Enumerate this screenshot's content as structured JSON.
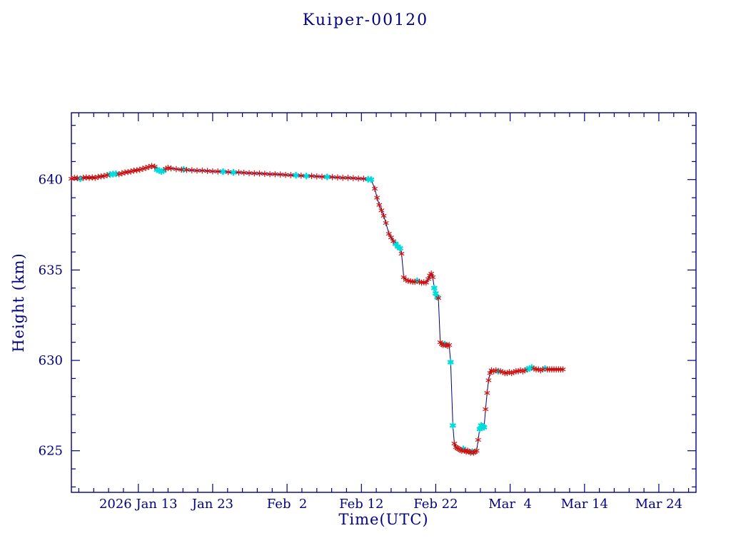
{
  "title": "Kuiper-00120",
  "chart_data": {
    "type": "line",
    "title": "Kuiper-00120",
    "xlabel": "Time(UTC)",
    "ylabel": "Height (km)",
    "x_unit": "days since 2026 Jan 4",
    "xlim": [
      0,
      84
    ],
    "ylim": [
      622.7,
      643.7
    ],
    "grid": false,
    "legend": "none",
    "x_major_ticks": [
      {
        "d": 9,
        "label": "2026 Jan 13"
      },
      {
        "d": 19,
        "label": "Jan 23"
      },
      {
        "d": 29,
        "label": "Feb  2"
      },
      {
        "d": 39,
        "label": "Feb 12"
      },
      {
        "d": 49,
        "label": "Feb 22"
      },
      {
        "d": 59,
        "label": "Mar  4"
      },
      {
        "d": 69,
        "label": "Mar 14"
      },
      {
        "d": 79,
        "label": "Mar 24"
      }
    ],
    "x_minor_step": 2,
    "y_major_ticks": [
      {
        "v": 625,
        "label": "625"
      },
      {
        "v": 630,
        "label": "630"
      },
      {
        "v": 635,
        "label": "635"
      },
      {
        "v": 640,
        "label": "640"
      }
    ],
    "y_minor_step": 1,
    "colors": {
      "axis": "#000080",
      "line": "#000080",
      "red_marker": "#cc1010",
      "cyan_marker": "#00dcdc",
      "background": "#ffffff"
    },
    "marker_note": "points array = [day, height_km, color] with color 0=red asterisk, 1=cyan asterisk",
    "points": [
      [
        0.0,
        640.05,
        0
      ],
      [
        0.4,
        640.1,
        0
      ],
      [
        0.8,
        640.08,
        0
      ],
      [
        1.2,
        640.05,
        1
      ],
      [
        1.6,
        640.1,
        0
      ],
      [
        2.0,
        640.12,
        0
      ],
      [
        2.4,
        640.1,
        0
      ],
      [
        2.8,
        640.12,
        0
      ],
      [
        3.2,
        640.1,
        0
      ],
      [
        3.6,
        640.15,
        0
      ],
      [
        4.0,
        640.18,
        0
      ],
      [
        4.4,
        640.2,
        0
      ],
      [
        4.8,
        640.25,
        0
      ],
      [
        5.2,
        640.28,
        1
      ],
      [
        5.6,
        640.3,
        1
      ],
      [
        6.0,
        640.32,
        1
      ],
      [
        6.4,
        640.3,
        0
      ],
      [
        6.8,
        640.35,
        0
      ],
      [
        7.2,
        640.4,
        0
      ],
      [
        7.6,
        640.42,
        0
      ],
      [
        8.0,
        640.45,
        0
      ],
      [
        8.4,
        640.5,
        0
      ],
      [
        8.8,
        640.52,
        0
      ],
      [
        9.2,
        640.55,
        0
      ],
      [
        9.6,
        640.6,
        0
      ],
      [
        10.0,
        640.65,
        0
      ],
      [
        10.4,
        640.7,
        0
      ],
      [
        10.8,
        640.75,
        0
      ],
      [
        11.2,
        640.72,
        0
      ],
      [
        11.5,
        640.55,
        1
      ],
      [
        11.8,
        640.5,
        1
      ],
      [
        12.1,
        640.45,
        1
      ],
      [
        12.4,
        640.5,
        1
      ],
      [
        12.7,
        640.6,
        0
      ],
      [
        13.0,
        640.65,
        0
      ],
      [
        13.4,
        640.62,
        0
      ],
      [
        14.1,
        640.58,
        0
      ],
      [
        14.8,
        640.55,
        0
      ],
      [
        15.1,
        640.56,
        1
      ],
      [
        15.5,
        640.54,
        0
      ],
      [
        16.2,
        640.52,
        0
      ],
      [
        16.9,
        640.5,
        0
      ],
      [
        17.6,
        640.5,
        0
      ],
      [
        18.3,
        640.48,
        0
      ],
      [
        19.0,
        640.46,
        0
      ],
      [
        19.7,
        640.45,
        0
      ],
      [
        20.4,
        640.44,
        1
      ],
      [
        21.1,
        640.42,
        0
      ],
      [
        21.8,
        640.4,
        1
      ],
      [
        22.5,
        640.4,
        0
      ],
      [
        23.2,
        640.38,
        0
      ],
      [
        23.9,
        640.36,
        0
      ],
      [
        24.6,
        640.35,
        0
      ],
      [
        25.3,
        640.34,
        0
      ],
      [
        26.0,
        640.32,
        0
      ],
      [
        26.7,
        640.3,
        0
      ],
      [
        27.4,
        640.3,
        0
      ],
      [
        28.1,
        640.28,
        0
      ],
      [
        28.8,
        640.26,
        0
      ],
      [
        29.5,
        640.25,
        0
      ],
      [
        30.2,
        640.24,
        1
      ],
      [
        30.9,
        640.22,
        0
      ],
      [
        31.6,
        640.2,
        1
      ],
      [
        32.3,
        640.2,
        0
      ],
      [
        33.0,
        640.18,
        0
      ],
      [
        33.7,
        640.16,
        0
      ],
      [
        34.4,
        640.15,
        1
      ],
      [
        35.1,
        640.14,
        0
      ],
      [
        35.8,
        640.12,
        0
      ],
      [
        36.5,
        640.1,
        0
      ],
      [
        37.2,
        640.1,
        0
      ],
      [
        37.9,
        640.08,
        0
      ],
      [
        38.6,
        640.06,
        0
      ],
      [
        39.3,
        640.05,
        0
      ],
      [
        39.9,
        640.02,
        1
      ],
      [
        40.3,
        640.0,
        1
      ],
      [
        40.8,
        639.5,
        0
      ],
      [
        41.1,
        639.0,
        0
      ],
      [
        41.4,
        638.6,
        0
      ],
      [
        41.7,
        638.3,
        0
      ],
      [
        42.0,
        638.0,
        0
      ],
      [
        42.3,
        637.6,
        0
      ],
      [
        42.7,
        637.0,
        0
      ],
      [
        43.0,
        636.8,
        0
      ],
      [
        43.3,
        636.6,
        0
      ],
      [
        43.6,
        636.45,
        1
      ],
      [
        43.9,
        636.3,
        1
      ],
      [
        44.2,
        636.2,
        1
      ],
      [
        44.4,
        635.9,
        0
      ],
      [
        44.7,
        634.6,
        0
      ],
      [
        45.0,
        634.45,
        0
      ],
      [
        45.3,
        634.4,
        0
      ],
      [
        45.6,
        634.38,
        0
      ],
      [
        45.9,
        634.35,
        0
      ],
      [
        46.2,
        634.35,
        0
      ],
      [
        46.5,
        634.4,
        1
      ],
      [
        46.8,
        634.35,
        0
      ],
      [
        47.1,
        634.3,
        0
      ],
      [
        47.4,
        634.32,
        0
      ],
      [
        47.7,
        634.3,
        0
      ],
      [
        48.0,
        634.5,
        0
      ],
      [
        48.2,
        634.7,
        0
      ],
      [
        48.4,
        634.8,
        0
      ],
      [
        48.6,
        634.6,
        0
      ],
      [
        48.8,
        634.0,
        1
      ],
      [
        49.0,
        633.7,
        1
      ],
      [
        49.2,
        633.5,
        1
      ],
      [
        49.35,
        633.45,
        0
      ],
      [
        49.6,
        631.0,
        0
      ],
      [
        49.8,
        630.9,
        0
      ],
      [
        50.0,
        630.85,
        0
      ],
      [
        50.2,
        630.9,
        1
      ],
      [
        50.4,
        630.85,
        0
      ],
      [
        50.6,
        630.8,
        0
      ],
      [
        50.8,
        630.85,
        0
      ],
      [
        51.0,
        629.9,
        1
      ],
      [
        51.3,
        626.4,
        1
      ],
      [
        51.5,
        625.4,
        0
      ],
      [
        51.7,
        625.2,
        0
      ],
      [
        51.9,
        625.15,
        0
      ],
      [
        52.1,
        625.1,
        0
      ],
      [
        52.3,
        625.05,
        0
      ],
      [
        52.5,
        625.0,
        0
      ],
      [
        52.7,
        625.1,
        1
      ],
      [
        52.9,
        625.0,
        0
      ],
      [
        53.1,
        624.95,
        0
      ],
      [
        53.3,
        625.0,
        0
      ],
      [
        53.5,
        624.95,
        0
      ],
      [
        53.7,
        624.9,
        0
      ],
      [
        53.9,
        624.95,
        1
      ],
      [
        54.1,
        624.9,
        0
      ],
      [
        54.3,
        624.95,
        0
      ],
      [
        54.5,
        625.0,
        0
      ],
      [
        54.7,
        625.6,
        0
      ],
      [
        54.9,
        626.2,
        1
      ],
      [
        55.1,
        626.4,
        1
      ],
      [
        55.3,
        626.35,
        1
      ],
      [
        55.5,
        626.3,
        1
      ],
      [
        55.7,
        627.3,
        0
      ],
      [
        55.9,
        628.2,
        0
      ],
      [
        56.1,
        628.9,
        0
      ],
      [
        56.3,
        629.3,
        0
      ],
      [
        56.5,
        629.45,
        0
      ],
      [
        56.8,
        629.4,
        0
      ],
      [
        57.1,
        629.45,
        0
      ],
      [
        57.4,
        629.4,
        1
      ],
      [
        57.7,
        629.4,
        0
      ],
      [
        58.0,
        629.35,
        0
      ],
      [
        58.3,
        629.3,
        0
      ],
      [
        58.6,
        629.3,
        0
      ],
      [
        58.9,
        629.35,
        0
      ],
      [
        59.2,
        629.3,
        0
      ],
      [
        59.5,
        629.35,
        0
      ],
      [
        59.8,
        629.4,
        0
      ],
      [
        60.1,
        629.4,
        0
      ],
      [
        60.4,
        629.45,
        0
      ],
      [
        60.7,
        629.4,
        0
      ],
      [
        61.0,
        629.45,
        0
      ],
      [
        61.3,
        629.5,
        1
      ],
      [
        61.6,
        629.55,
        1
      ],
      [
        61.9,
        629.6,
        1
      ],
      [
        62.2,
        629.55,
        0
      ],
      [
        62.5,
        629.5,
        0
      ],
      [
        62.8,
        629.5,
        0
      ],
      [
        63.1,
        629.45,
        0
      ],
      [
        63.4,
        629.5,
        0
      ],
      [
        63.7,
        629.55,
        1
      ],
      [
        64.0,
        629.5,
        0
      ],
      [
        64.3,
        629.5,
        0
      ],
      [
        64.6,
        629.5,
        0
      ],
      [
        64.9,
        629.5,
        0
      ],
      [
        65.2,
        629.5,
        0
      ],
      [
        65.5,
        629.5,
        0
      ],
      [
        65.8,
        629.5,
        0
      ],
      [
        66.1,
        629.5,
        0
      ]
    ]
  }
}
